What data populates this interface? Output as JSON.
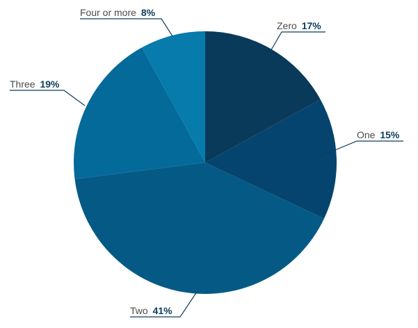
{
  "chart_data": {
    "type": "pie",
    "title": "",
    "slices": [
      {
        "label": "Zero",
        "value": 17,
        "value_label": "17%",
        "color": "#0a3a5a"
      },
      {
        "label": "One",
        "value": 15,
        "value_label": "15%",
        "color": "#05446e"
      },
      {
        "label": "Two",
        "value": 41,
        "value_label": "41%",
        "color": "#045a85"
      },
      {
        "label": "Three",
        "value": 19,
        "value_label": "19%",
        "color": "#046a9a"
      },
      {
        "label": "Four or more",
        "value": 8,
        "value_label": "8%",
        "color": "#067bac"
      }
    ],
    "start": "12 o'clock",
    "direction": "clockwise",
    "legend": "none",
    "labels": "outside with leader lines"
  }
}
